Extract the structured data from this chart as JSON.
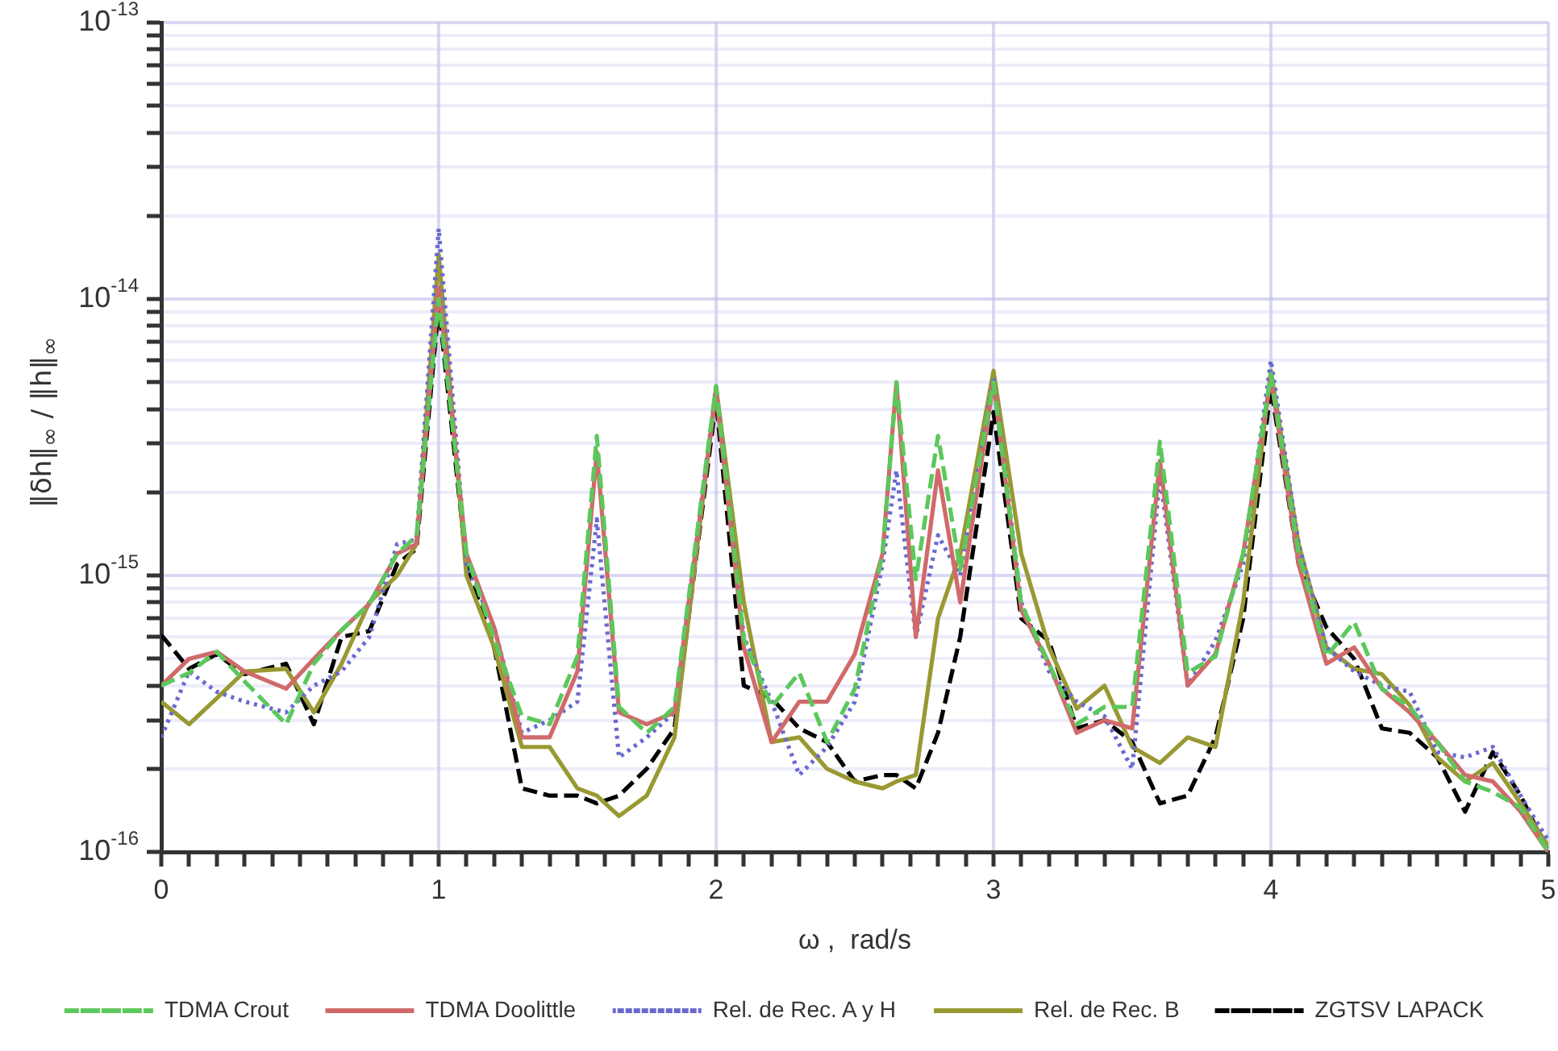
{
  "chart_data": {
    "type": "line",
    "xlabel": "ω ,  rad/s",
    "ylabel": "‖δh‖$_{∞}$ / ‖h‖$_{∞}$",
    "log": "y",
    "grid": true,
    "legend": "bottom",
    "marker": "none",
    "xlim": [
      0,
      5
    ],
    "xticks": [
      0,
      {
        "value": 0.1,
        "label": null
      },
      {
        "value": 0.2,
        "label": null
      },
      {
        "value": 0.3,
        "label": null
      },
      {
        "value": 0.4,
        "label": null
      },
      {
        "value": 0.5,
        "label": null
      },
      {
        "value": 0.6,
        "label": null
      },
      {
        "value": 0.7,
        "label": null
      },
      {
        "value": 0.8,
        "label": null
      },
      {
        "value": 0.9,
        "label": null
      },
      1,
      {
        "value": 1.1,
        "label": null
      },
      {
        "value": 1.2,
        "label": null
      },
      {
        "value": 1.3,
        "label": null
      },
      {
        "value": 1.4,
        "label": null
      },
      {
        "value": 1.5,
        "label": null
      },
      {
        "value": 1.6,
        "label": null
      },
      {
        "value": 1.7,
        "label": null
      },
      {
        "value": 1.8,
        "label": null
      },
      {
        "value": 1.9,
        "label": null
      },
      2,
      {
        "value": 2.1,
        "label": null
      },
      {
        "value": 2.2,
        "label": null
      },
      {
        "value": 2.3,
        "label": null
      },
      {
        "value": 2.4,
        "label": null
      },
      {
        "value": 2.5,
        "label": null
      },
      {
        "value": 2.6,
        "label": null
      },
      {
        "value": 2.7,
        "label": null
      },
      {
        "value": 2.8,
        "label": null
      },
      {
        "value": 2.9,
        "label": null
      },
      3,
      {
        "value": 3.1,
        "label": null
      },
      {
        "value": 3.2,
        "label": null
      },
      {
        "value": 3.3,
        "label": null
      },
      {
        "value": 3.4,
        "label": null
      },
      {
        "value": 3.5,
        "label": null
      },
      {
        "value": 3.6,
        "label": null
      },
      {
        "value": 3.7,
        "label": null
      },
      {
        "value": 3.8,
        "label": null
      },
      {
        "value": 3.9,
        "label": null
      },
      4,
      {
        "value": 4.1,
        "label": null
      },
      {
        "value": 4.2,
        "label": null
      },
      {
        "value": 4.3,
        "label": null
      },
      {
        "value": 4.4,
        "label": null
      },
      {
        "value": 4.5,
        "label": null
      },
      {
        "value": 4.6,
        "label": null
      },
      {
        "value": 4.7,
        "label": null
      },
      {
        "value": 4.8,
        "label": null
      },
      {
        "value": 4.9,
        "label": null
      },
      5
    ],
    "ylim": [
      1e-16,
      1e-13
    ],
    "yticks": [
      {
        "value": 1e-16,
        "label": "10$^{-16}$"
      },
      {
        "value": 2e-16,
        "label": null
      },
      {
        "value": 3e-16,
        "label": null
      },
      {
        "value": 4e-16,
        "label": null
      },
      {
        "value": 5e-16,
        "label": null
      },
      {
        "value": 6e-16,
        "label": null
      },
      {
        "value": 7e-16,
        "label": null
      },
      {
        "value": 8e-16,
        "label": null
      },
      {
        "value": 9e-16,
        "label": null
      },
      {
        "value": 1e-15,
        "label": "10$^{-15}$"
      },
      {
        "value": 2e-15,
        "label": null
      },
      {
        "value": 3e-15,
        "label": null
      },
      {
        "value": 4e-15,
        "label": null
      },
      {
        "value": 5e-15,
        "label": null
      },
      {
        "value": 6e-15,
        "label": null
      },
      {
        "value": 7e-15,
        "label": null
      },
      {
        "value": 8e-15,
        "label": null
      },
      {
        "value": 9e-15,
        "label": null
      },
      {
        "value": 1e-14,
        "label": "10$^{-14}$"
      },
      {
        "value": 2e-14,
        "label": null
      },
      {
        "value": 3e-14,
        "label": null
      },
      {
        "value": 4e-14,
        "label": null
      },
      {
        "value": 5e-14,
        "label": null
      },
      {
        "value": 6e-14,
        "label": null
      },
      {
        "value": 7e-14,
        "label": null
      },
      {
        "value": 8e-14,
        "label": null
      },
      {
        "value": 9e-14,
        "label": null
      },
      {
        "value": 1e-13,
        "label": "10$^{-13}$"
      }
    ],
    "x": [
      0,
      0.1,
      0.2,
      0.3,
      0.45,
      0.55,
      0.65,
      0.75,
      0.85,
      0.92,
      1.0,
      1.1,
      1.2,
      1.3,
      1.4,
      1.5,
      1.57,
      1.65,
      1.75,
      1.85,
      2.0,
      2.1,
      2.2,
      2.3,
      2.4,
      2.5,
      2.6,
      2.65,
      2.72,
      2.8,
      2.88,
      3.0,
      3.1,
      3.2,
      3.3,
      3.4,
      3.5,
      3.6,
      3.7,
      3.8,
      3.9,
      4.0,
      4.1,
      4.2,
      4.3,
      4.4,
      4.5,
      4.6,
      4.7,
      4.8,
      4.9,
      5.0
    ],
    "series": [
      {
        "name": "TDMA Crout",
        "color": "#5cc85c",
        "line_style": "dashed",
        "values": [
          4e-16,
          4.45e-16,
          5.3e-16,
          4.15e-16,
          2.9e-16,
          4.8e-16,
          6.35e-16,
          7.9e-16,
          1.2e-15,
          1.39e-15,
          1e-14,
          1.2e-15,
          5.9e-16,
          3.1e-16,
          2.9e-16,
          5.1e-16,
          3.2e-15,
          3.35e-16,
          2.7e-16,
          3.35e-16,
          4.85e-15,
          5.9e-16,
          3.35e-16,
          4.45e-16,
          2.5e-16,
          3.9e-16,
          1.2e-15,
          5e-15,
          9.7e-16,
          3.2e-15,
          1.05e-15,
          5e-15,
          7.9e-16,
          4.8e-16,
          2.9e-16,
          3.35e-16,
          3.35e-16,
          3.05e-15,
          4.45e-16,
          5.1e-16,
          1.2e-15,
          5.35e-15,
          1.2e-15,
          5.1e-16,
          6.8e-16,
          3.9e-16,
          3.35e-16,
          2.5e-16,
          1.8e-16,
          1.65e-16,
          1.45e-16,
          1e-16
        ]
      },
      {
        "name": "TDMA Doolittle",
        "color": "#d06a6a",
        "line_style": "solid",
        "values": [
          4e-16,
          5e-16,
          5.3e-16,
          4.5e-16,
          3.9e-16,
          5e-16,
          6.35e-16,
          7.9e-16,
          1.2e-15,
          1.3e-15,
          1.1e-14,
          1.2e-15,
          6.5e-16,
          2.6e-16,
          2.6e-16,
          4.5e-16,
          2.8e-15,
          3.2e-16,
          2.9e-16,
          3.2e-16,
          4.6e-15,
          5.5e-16,
          2.5e-16,
          3.5e-16,
          3.5e-16,
          5.2e-16,
          1.2e-15,
          5e-15,
          6e-16,
          2.4e-15,
          8e-16,
          5e-15,
          7.5e-16,
          4.8e-16,
          2.7e-16,
          3e-16,
          2.8e-16,
          2.6e-15,
          4e-16,
          5.2e-16,
          1.2e-15,
          5.2e-15,
          1.1e-15,
          4.8e-16,
          5.5e-16,
          3.9e-16,
          3.2e-16,
          2.5e-16,
          1.9e-16,
          1.8e-16,
          1.4e-16,
          1e-16
        ]
      },
      {
        "name": "Rel. de Rec. A y H",
        "color": "#6a6ad0",
        "line_style": "dotted",
        "values": [
          2.6e-16,
          4.5e-16,
          3.8e-16,
          3.5e-16,
          3.2e-16,
          4e-16,
          4.5e-16,
          6e-16,
          1.3e-15,
          1.35e-15,
          1.8e-14,
          1.1e-15,
          6.5e-16,
          2.7e-16,
          3e-16,
          3.5e-16,
          1.6e-15,
          2.2e-16,
          2.6e-16,
          3.2e-16,
          4.8e-15,
          6e-16,
          3.5e-16,
          1.9e-16,
          2.4e-16,
          3.5e-16,
          1.1e-15,
          2.4e-15,
          6e-16,
          1.4e-15,
          1e-15,
          5.2e-15,
          8e-16,
          4.5e-16,
          3.5e-16,
          3.1e-16,
          2e-16,
          2.3e-15,
          4e-16,
          5.8e-16,
          1.1e-15,
          6e-15,
          1.3e-15,
          5.5e-16,
          4.5e-16,
          4e-16,
          3.8e-16,
          2.3e-16,
          2.2e-16,
          2.4e-16,
          1.6e-16,
          1.1e-16
        ]
      },
      {
        "name": "Rel. de Rec. B",
        "color": "#999933",
        "line_style": "solid",
        "values": [
          3.5e-16,
          2.9e-16,
          3.6e-16,
          4.5e-16,
          4.6e-16,
          3.2e-16,
          4.8e-16,
          8e-16,
          1e-15,
          1.3e-15,
          1.45e-14,
          1e-15,
          5.5e-16,
          2.4e-16,
          2.4e-16,
          1.7e-16,
          1.6e-16,
          1.35e-16,
          1.6e-16,
          2.6e-16,
          4.8e-15,
          8e-16,
          2.5e-16,
          2.6e-16,
          2e-16,
          1.8e-16,
          1.7e-16,
          1.8e-16,
          1.9e-16,
          7e-16,
          1.2e-15,
          5.5e-15,
          1.2e-15,
          5.5e-16,
          3.3e-16,
          4e-16,
          2.4e-16,
          2.1e-16,
          2.6e-16,
          2.4e-16,
          8e-16,
          5.5e-15,
          1.3e-15,
          5.5e-16,
          4.6e-16,
          4.4e-16,
          3.4e-16,
          2.2e-16,
          1.8e-16,
          2.1e-16,
          1.5e-16,
          1.05e-16
        ]
      },
      {
        "name": "ZGTSV LAPACK",
        "color": "#000000",
        "line_style": "dashed",
        "values": [
          6.1e-16,
          4.6e-16,
          5.2e-16,
          4.4e-16,
          4.8e-16,
          2.9e-16,
          6e-16,
          6.3e-16,
          1.1e-15,
          1.25e-15,
          9.5e-15,
          1.1e-15,
          5.5e-16,
          1.7e-16,
          1.6e-16,
          1.6e-16,
          1.5e-16,
          1.6e-16,
          2e-16,
          2.8e-16,
          4.3e-15,
          4e-16,
          3.6e-16,
          2.8e-16,
          2.5e-16,
          1.8e-16,
          1.9e-16,
          1.9e-16,
          1.7e-16,
          2.7e-16,
          6e-16,
          3.9e-15,
          7e-16,
          5.8e-16,
          2.8e-16,
          3e-16,
          2.5e-16,
          1.5e-16,
          1.6e-16,
          2.6e-16,
          7e-16,
          4.8e-15,
          1.1e-15,
          6.5e-16,
          5e-16,
          2.8e-16,
          2.7e-16,
          2.2e-16,
          1.4e-16,
          2.3e-16,
          1.6e-16,
          1e-16
        ]
      }
    ]
  }
}
